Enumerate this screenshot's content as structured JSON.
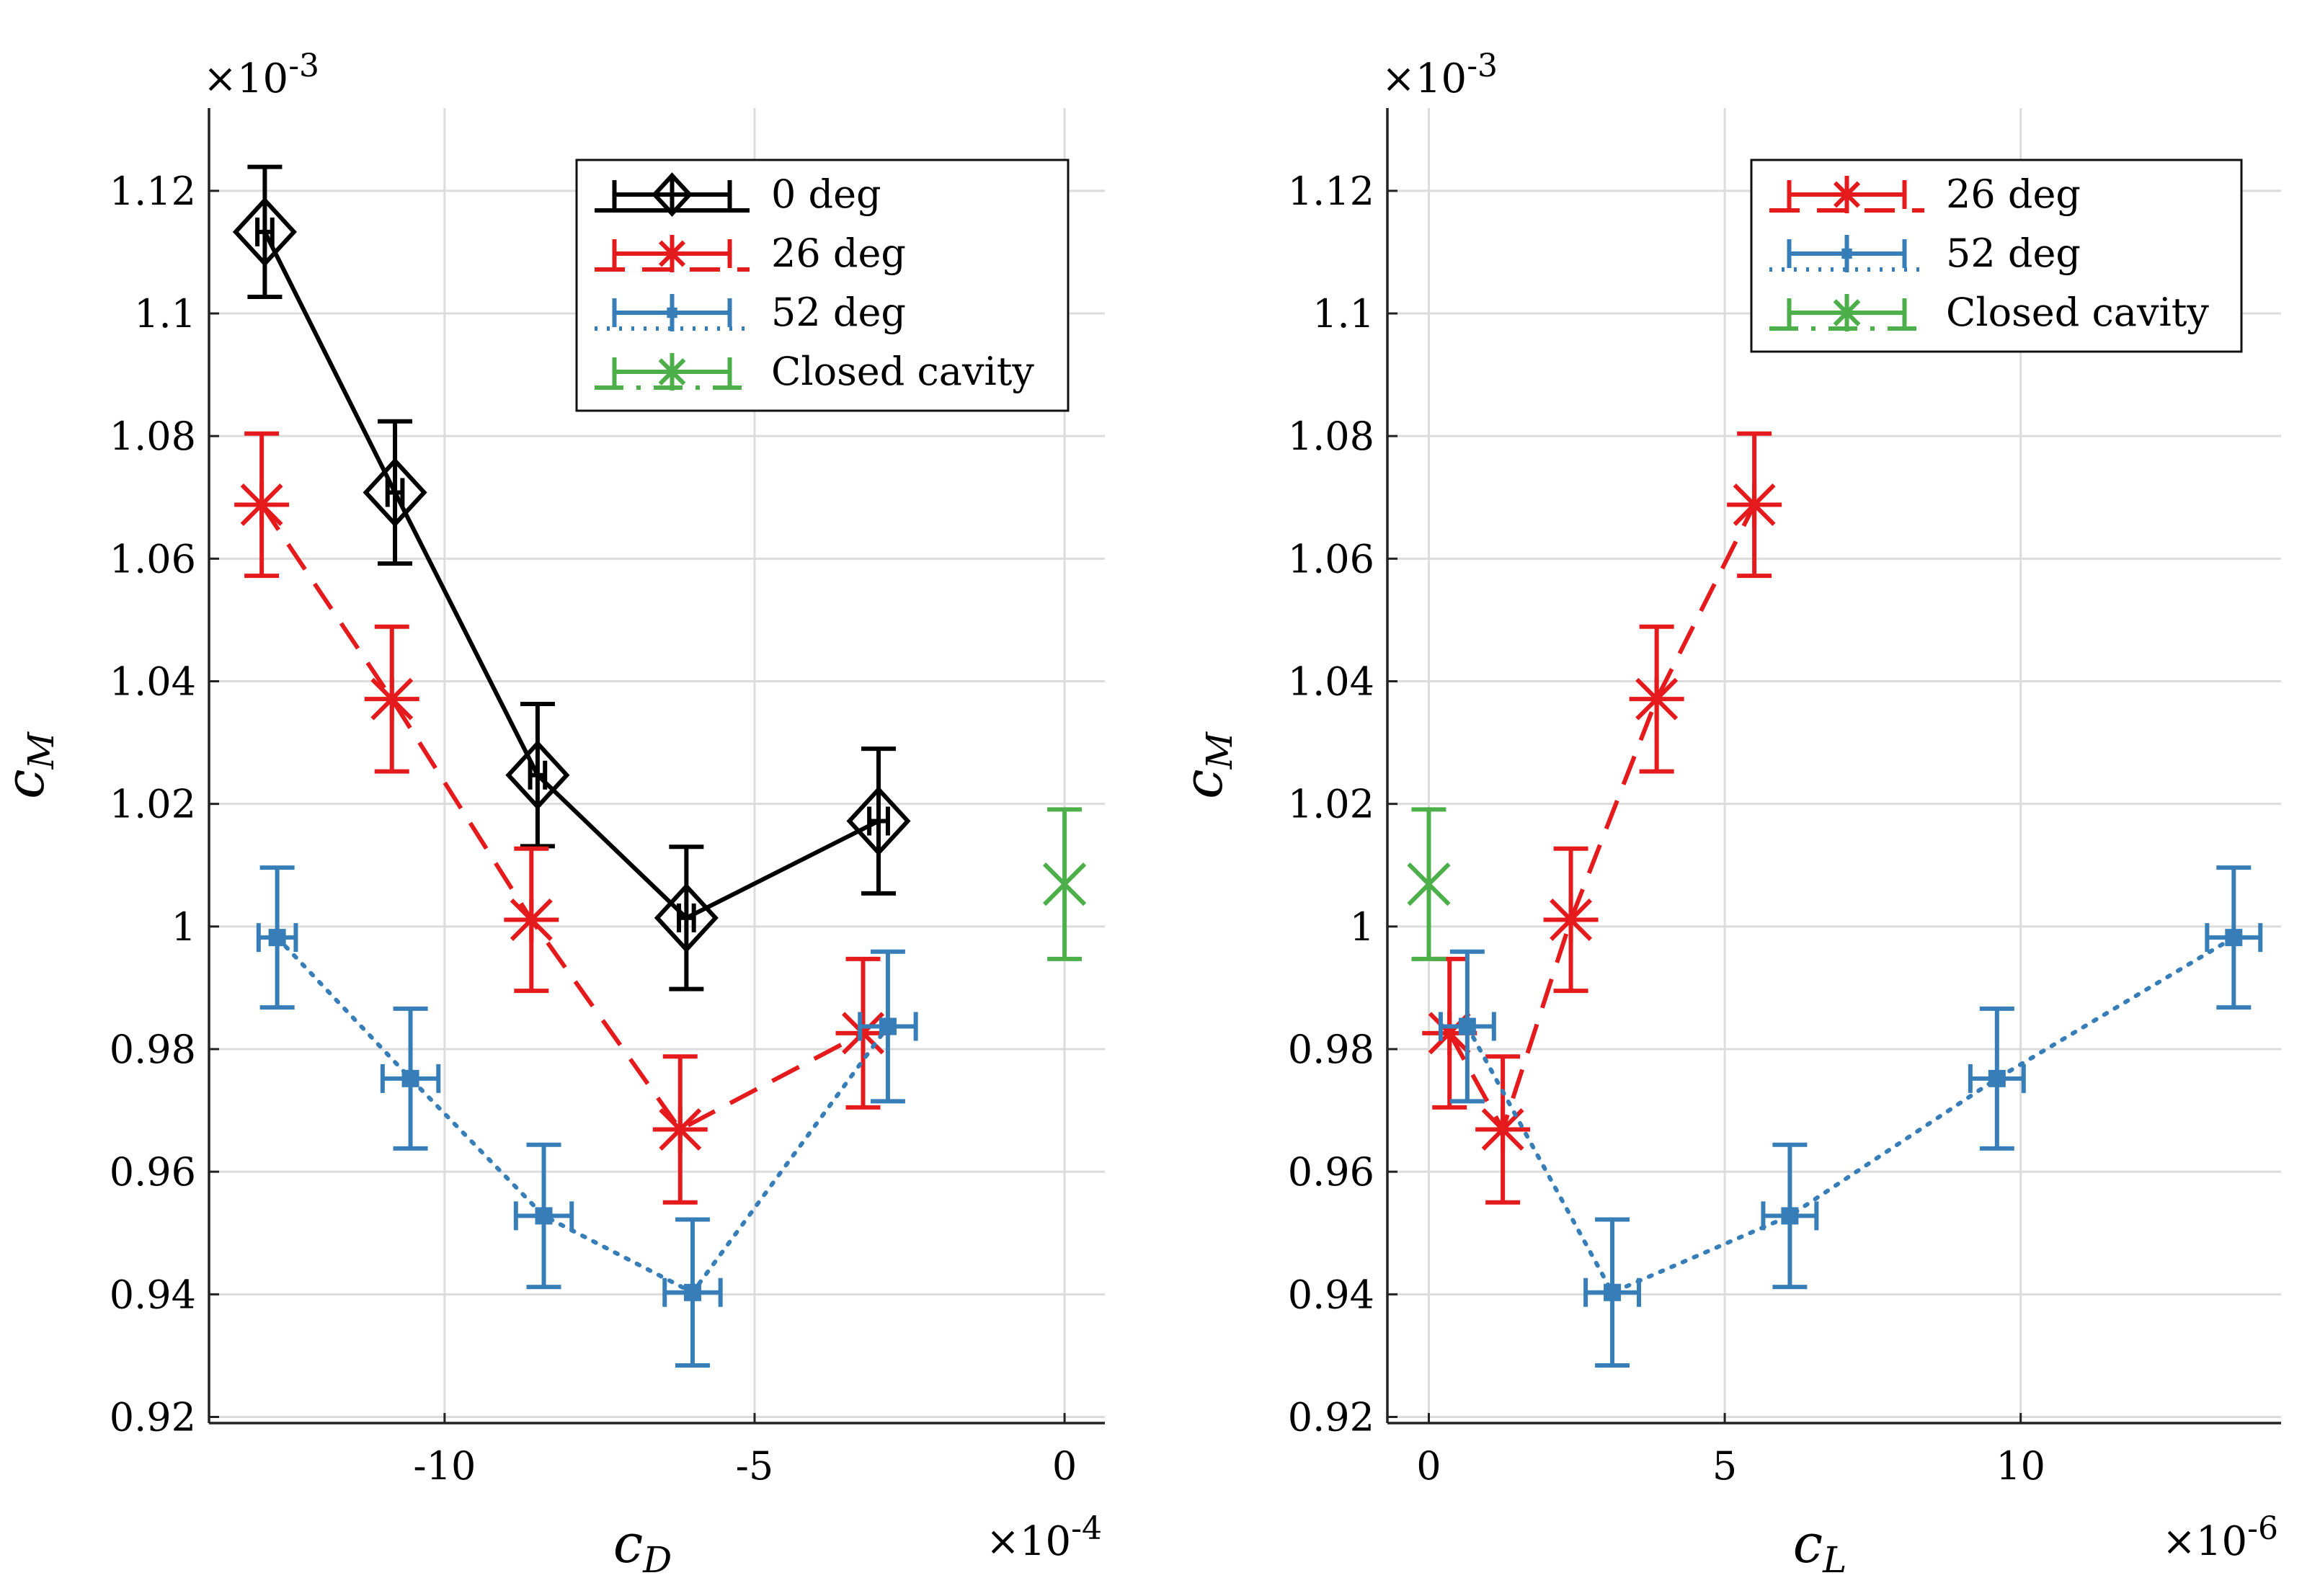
{
  "chart_data": [
    {
      "type": "line",
      "xlabel": "c",
      "xlabel_sub": "D",
      "ylabel": "c",
      "ylabel_sub": "M",
      "x_multiplier": "×10",
      "x_multiplier_exp": "-4",
      "y_multiplier": "×10",
      "y_multiplier_exp": "-3",
      "xlim": [
        -13.8,
        0.65
      ],
      "ylim": [
        0.919,
        1.1335
      ],
      "xticks": [
        -10,
        -5,
        0
      ],
      "xtick_labels": [
        "-10",
        "-5",
        "0"
      ],
      "yticks": [
        0.92,
        0.94,
        0.96,
        0.98,
        1.0,
        1.02,
        1.04,
        1.06,
        1.08,
        1.1,
        1.12
      ],
      "ytick_labels": [
        "0.92",
        "0.94",
        "0.96",
        "0.98",
        "1",
        "1.02",
        "1.04",
        "1.06",
        "1.08",
        "1.1",
        "1.12"
      ],
      "grid": true,
      "legend_position": "top-right",
      "series": [
        {
          "name": "0 deg",
          "color": "#000000",
          "marker": "diamond",
          "line": "solid",
          "x": [
            -12.9,
            -10.8,
            -8.5,
            -6.1,
            -3.0
          ],
          "y": [
            1.1133,
            1.0708,
            1.0247,
            1.0014,
            1.0172
          ],
          "yerr": [
            0.0106,
            0.0116,
            0.0116,
            0.0116,
            0.0118
          ],
          "xerr": [
            0.12,
            0.12,
            0.12,
            0.12,
            0.15
          ]
        },
        {
          "name": "26 deg",
          "color": "#e41a1c",
          "marker": "asterisk",
          "line": "dashed",
          "x": [
            -12.95,
            -10.85,
            -8.6,
            -6.2,
            -3.25
          ],
          "y": [
            1.0688,
            1.0371,
            1.0011,
            0.9669,
            0.9826
          ],
          "yerr": [
            0.0116,
            0.0118,
            0.0116,
            0.0119,
            0.0121
          ],
          "xerr": [
            0,
            0,
            0,
            0,
            0
          ]
        },
        {
          "name": "52 deg",
          "color": "#377eb8",
          "marker": "square",
          "line": "dotted",
          "x": [
            -12.7,
            -10.55,
            -8.4,
            -6.0,
            -2.85
          ],
          "y": [
            0.9982,
            0.9752,
            0.9528,
            0.9403,
            0.9837
          ],
          "yerr": [
            0.0114,
            0.0114,
            0.0116,
            0.0119,
            0.0122
          ],
          "xerr": [
            0.3,
            0.45,
            0.45,
            0.45,
            0.45
          ]
        },
        {
          "name": "Closed cavity",
          "color": "#4daf4a",
          "marker": "cross",
          "line": "dashdot",
          "x": [
            0.0
          ],
          "y": [
            1.0069
          ],
          "yerr": [
            0.0122
          ],
          "xerr": [
            0
          ]
        }
      ]
    },
    {
      "type": "line",
      "xlabel": "c",
      "xlabel_sub": "L",
      "ylabel": "c",
      "ylabel_sub": "M",
      "x_multiplier": "×10",
      "x_multiplier_exp": "-6",
      "y_multiplier": "×10",
      "y_multiplier_exp": "-3",
      "xlim": [
        -0.7,
        14.4
      ],
      "ylim": [
        0.919,
        1.1335
      ],
      "xticks": [
        0,
        5,
        10
      ],
      "xtick_labels": [
        "0",
        "5",
        "10"
      ],
      "yticks": [
        0.92,
        0.94,
        0.96,
        0.98,
        1.0,
        1.02,
        1.04,
        1.06,
        1.08,
        1.1,
        1.12
      ],
      "ytick_labels": [
        "0.92",
        "0.94",
        "0.96",
        "0.98",
        "1",
        "1.02",
        "1.04",
        "1.06",
        "1.08",
        "1.1",
        "1.12"
      ],
      "grid": true,
      "legend_position": "top-right",
      "series": [
        {
          "name": "26 deg",
          "color": "#e41a1c",
          "marker": "asterisk",
          "line": "dashed",
          "x": [
            0.35,
            1.25,
            2.4,
            3.85,
            5.5
          ],
          "y": [
            0.9826,
            0.9669,
            1.0011,
            1.0371,
            1.0688
          ],
          "yerr": [
            0.0121,
            0.0119,
            0.0116,
            0.0118,
            0.0116
          ],
          "xerr": [
            0,
            0,
            0,
            0,
            0
          ]
        },
        {
          "name": "52 deg",
          "color": "#377eb8",
          "marker": "square",
          "line": "dotted",
          "x": [
            0.65,
            3.1,
            6.1,
            9.6,
            13.6
          ],
          "y": [
            0.9837,
            0.9403,
            0.9528,
            0.9752,
            0.9982
          ],
          "yerr": [
            0.0122,
            0.0119,
            0.0116,
            0.0114,
            0.0114
          ],
          "xerr": [
            0.45,
            0.45,
            0.45,
            0.45,
            0.45
          ]
        },
        {
          "name": "Closed cavity",
          "color": "#4daf4a",
          "marker": "cross",
          "line": "dashdot",
          "x": [
            0.0
          ],
          "y": [
            1.0069
          ],
          "yerr": [
            0.0122
          ],
          "xerr": [
            0
          ]
        }
      ]
    }
  ]
}
